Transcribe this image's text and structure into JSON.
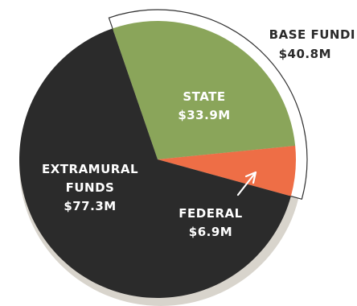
{
  "chart_data": {
    "type": "pie",
    "unit": "$M",
    "slices": [
      {
        "name": "STATE",
        "value_label": "$33.9M",
        "value": 33.9,
        "color": "#8aa55a",
        "label_color": "#ffffff"
      },
      {
        "name": "FEDERAL",
        "value_label": "$6.9M",
        "value": 6.9,
        "color": "#ee6e46",
        "label_color": "#ffffff"
      },
      {
        "name": "EXTRAMURAL FUNDS",
        "value_label": "$77.3M",
        "value": 77.3,
        "color": "#2b2b2b",
        "label_color": "#ffffff"
      }
    ],
    "group_annotation": {
      "label": "BASE FUNDI",
      "value_label": "$40.8M",
      "value": 40.8,
      "covers": [
        "STATE",
        "FEDERAL"
      ],
      "color": "#2a2a2a"
    }
  },
  "colors": {
    "background": "#ffffff",
    "bracket_fill": "#ffffff",
    "bracket_stroke": "#333333",
    "shadow": "#d8d4cc",
    "arrow": "#ffffff"
  }
}
